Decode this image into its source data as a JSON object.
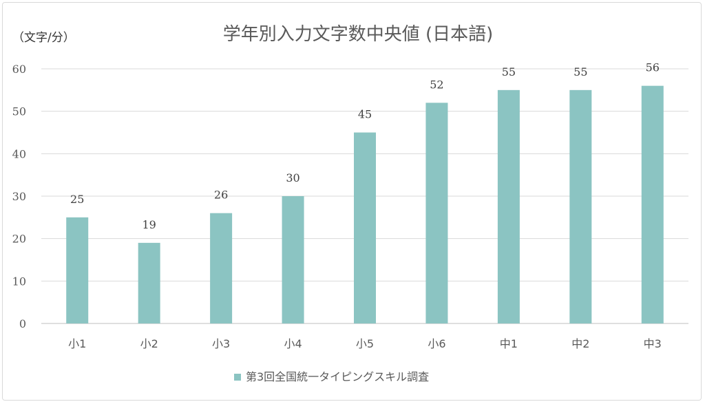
{
  "chart_data": {
    "type": "bar",
    "title": "学年別入力文字数中央値 (日本語)",
    "unit_label": "（文字/分）",
    "categories": [
      "小1",
      "小2",
      "小3",
      "小4",
      "小5",
      "小6",
      "中1",
      "中2",
      "中3"
    ],
    "series": [
      {
        "name": "第3回全国統一タイピングスキル調査",
        "values": [
          25,
          19,
          26,
          30,
          45,
          52,
          55,
          55,
          56
        ],
        "color": "#8bc4c2"
      }
    ],
    "ylim": [
      0,
      60
    ],
    "yticks": [
      0,
      10,
      20,
      30,
      40,
      50,
      60
    ],
    "grid": true,
    "data_labels": true,
    "legend_position": "bottom"
  }
}
